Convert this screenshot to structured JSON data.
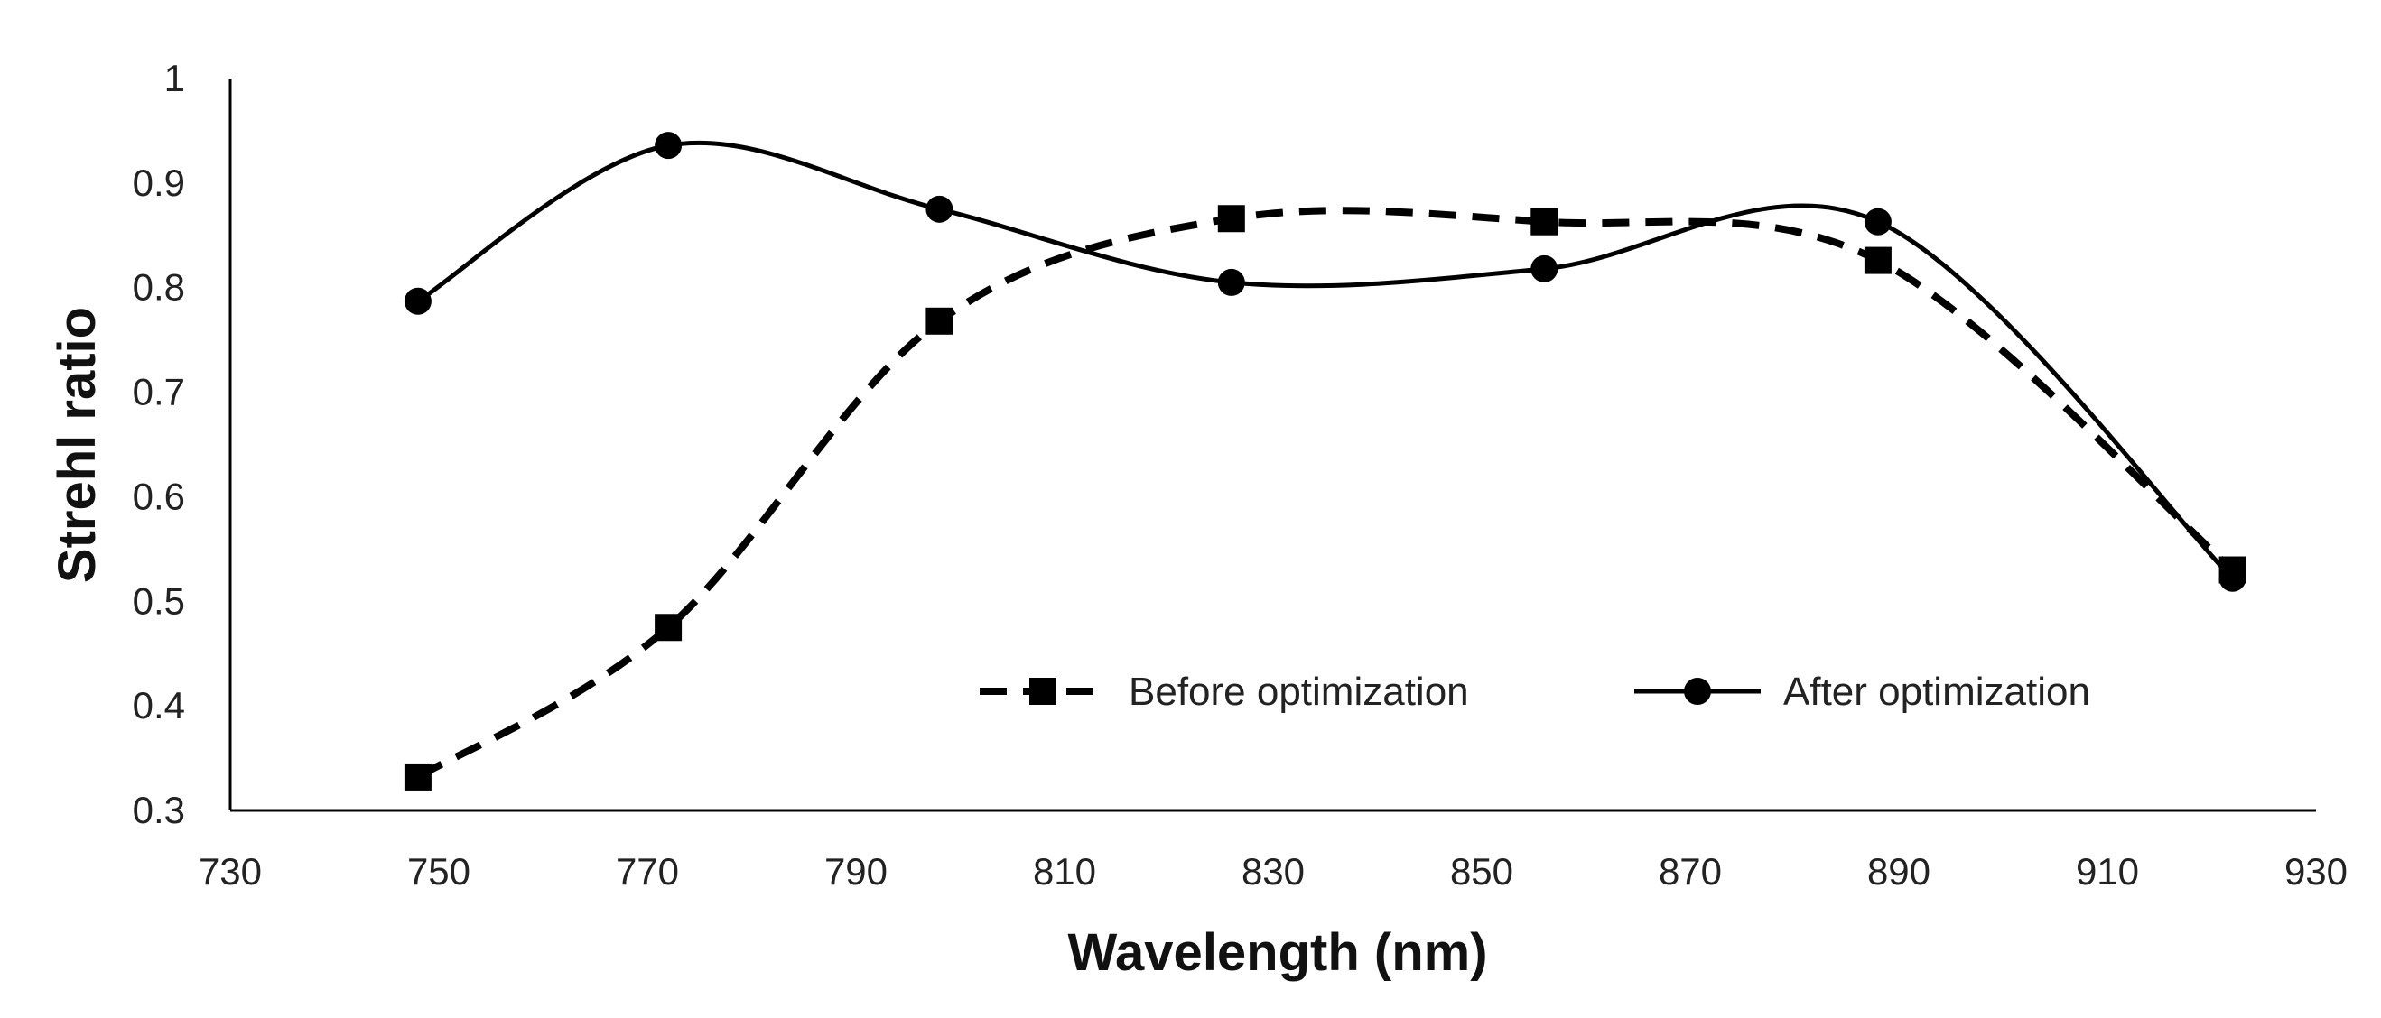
{
  "chart_data": {
    "type": "line",
    "xlabel": "Wavelength (nm)",
    "ylabel": "Strehl ratio",
    "xlim": [
      730,
      930
    ],
    "ylim": [
      0.3,
      1
    ],
    "x_ticks": [
      "730",
      "750",
      "770",
      "790",
      "810",
      "830",
      "850",
      "870",
      "890",
      "910",
      "930"
    ],
    "y_ticks": [
      "0.3",
      "0.4",
      "0.5",
      "0.6",
      "0.7",
      "0.8",
      "0.9",
      "1"
    ],
    "grid": false,
    "legend_position": "lower-right",
    "series": [
      {
        "name": "Before optimization",
        "line_style": "dashed",
        "marker": "square",
        "color": "#000000",
        "x": [
          748,
          772,
          798,
          826,
          856,
          888,
          922
        ],
        "y": [
          0.332,
          0.475,
          0.768,
          0.866,
          0.863,
          0.826,
          0.53
        ]
      },
      {
        "name": "After optimization",
        "line_style": "solid",
        "marker": "circle",
        "color": "#000000",
        "x": [
          748,
          772,
          798,
          826,
          856,
          888,
          922
        ],
        "y": [
          0.787,
          0.936,
          0.875,
          0.805,
          0.818,
          0.863,
          0.522
        ]
      }
    ]
  }
}
